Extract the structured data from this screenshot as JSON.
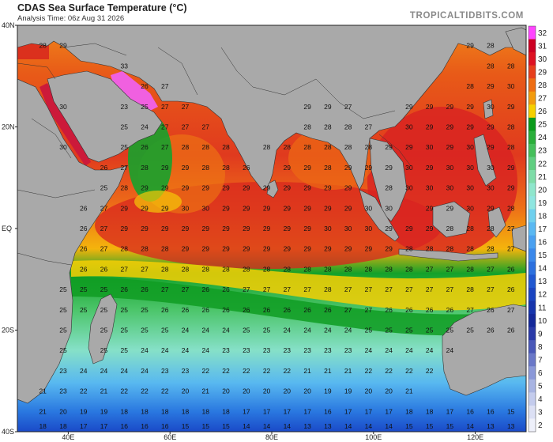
{
  "header": {
    "title": "CDAS Sea Surface Temperature (°C)",
    "subtitle": "Analysis Time: 06z Aug 31 2026",
    "brand": "TROPICALTIDBITS.COM"
  },
  "map": {
    "lon_range": [
      30,
      130
    ],
    "lat_range": [
      -40,
      40
    ],
    "y_ticks": [
      {
        "lat": 40,
        "label": "40N"
      },
      {
        "lat": 20,
        "label": "20N"
      },
      {
        "lat": 0,
        "label": "EQ"
      },
      {
        "lat": -20,
        "label": "20S"
      },
      {
        "lat": -40,
        "label": "40S"
      }
    ],
    "x_ticks": [
      {
        "lon": 40,
        "label": "40E"
      },
      {
        "lon": 60,
        "label": "60E"
      },
      {
        "lon": 80,
        "label": "80E"
      },
      {
        "lon": 100,
        "label": "100E"
      },
      {
        "lon": 120,
        "label": "120E"
      }
    ],
    "land_color": "#a9a9a9",
    "border_color": "#2a2a2a",
    "value_grid": {
      "lons": [
        35,
        39,
        43,
        47,
        51,
        55,
        59,
        63,
        67,
        71,
        75,
        79,
        83,
        87,
        91,
        95,
        99,
        103,
        107,
        111,
        115,
        119,
        123,
        127
      ],
      "rows": [
        {
          "lat": 36,
          "values": [
            28,
            29,
            null,
            null,
            null,
            null,
            null,
            null,
            null,
            null,
            null,
            null,
            null,
            null,
            null,
            null,
            null,
            null,
            null,
            null,
            null,
            29,
            28,
            null
          ]
        },
        {
          "lat": 32,
          "values": [
            null,
            null,
            null,
            null,
            33,
            null,
            null,
            null,
            null,
            null,
            null,
            null,
            null,
            null,
            null,
            null,
            null,
            null,
            null,
            null,
            null,
            null,
            28,
            28
          ]
        },
        {
          "lat": 28,
          "values": [
            null,
            null,
            null,
            null,
            null,
            26,
            27,
            null,
            null,
            null,
            null,
            null,
            null,
            null,
            null,
            null,
            null,
            null,
            null,
            null,
            null,
            28,
            29,
            30
          ]
        },
        {
          "lat": 24,
          "values": [
            null,
            30,
            null,
            null,
            23,
            25,
            27,
            27,
            null,
            null,
            null,
            null,
            null,
            29,
            29,
            27,
            null,
            null,
            29,
            29,
            29,
            29,
            30,
            29
          ]
        },
        {
          "lat": 20,
          "values": [
            null,
            null,
            null,
            null,
            25,
            24,
            27,
            27,
            27,
            null,
            null,
            null,
            null,
            28,
            28,
            28,
            27,
            null,
            30,
            29,
            29,
            29,
            29,
            28
          ]
        },
        {
          "lat": 16,
          "values": [
            null,
            30,
            null,
            null,
            25,
            26,
            27,
            28,
            28,
            28,
            null,
            28,
            28,
            28,
            28,
            28,
            28,
            29,
            29,
            30,
            29,
            30,
            29,
            28
          ]
        },
        {
          "lat": 12,
          "values": [
            null,
            null,
            null,
            26,
            27,
            28,
            29,
            29,
            28,
            28,
            26,
            null,
            29,
            29,
            28,
            29,
            29,
            29,
            30,
            29,
            30,
            30,
            30,
            29
          ]
        },
        {
          "lat": 8,
          "values": [
            null,
            null,
            null,
            25,
            28,
            29,
            29,
            29,
            29,
            29,
            29,
            29,
            29,
            29,
            29,
            29,
            null,
            28,
            30,
            30,
            30,
            30,
            30,
            29
          ]
        },
        {
          "lat": 4,
          "values": [
            null,
            null,
            26,
            27,
            29,
            29,
            29,
            30,
            30,
            29,
            29,
            29,
            29,
            29,
            29,
            29,
            30,
            30,
            null,
            29,
            29,
            30,
            29,
            28
          ]
        },
        {
          "lat": 0,
          "values": [
            null,
            null,
            26,
            27,
            29,
            29,
            29,
            29,
            29,
            29,
            29,
            29,
            29,
            29,
            30,
            30,
            30,
            29,
            29,
            29,
            28,
            28,
            28,
            27
          ]
        },
        {
          "lat": -4,
          "values": [
            null,
            null,
            26,
            27,
            28,
            28,
            28,
            29,
            29,
            29,
            29,
            29,
            29,
            29,
            29,
            29,
            29,
            29,
            28,
            28,
            28,
            28,
            28,
            27
          ]
        },
        {
          "lat": -8,
          "values": [
            null,
            null,
            26,
            26,
            27,
            27,
            28,
            28,
            28,
            28,
            28,
            28,
            28,
            28,
            28,
            28,
            28,
            28,
            28,
            27,
            27,
            28,
            27,
            26
          ]
        },
        {
          "lat": -12,
          "values": [
            null,
            25,
            25,
            25,
            26,
            26,
            27,
            27,
            26,
            26,
            27,
            27,
            27,
            27,
            28,
            27,
            27,
            27,
            27,
            27,
            27,
            28,
            27,
            26
          ]
        },
        {
          "lat": -16,
          "values": [
            null,
            25,
            25,
            25,
            25,
            25,
            26,
            26,
            26,
            26,
            26,
            26,
            26,
            26,
            26,
            27,
            27,
            26,
            26,
            26,
            26,
            27,
            26,
            27
          ]
        },
        {
          "lat": -20,
          "values": [
            null,
            25,
            null,
            25,
            25,
            25,
            25,
            24,
            24,
            24,
            25,
            25,
            24,
            24,
            24,
            24,
            25,
            25,
            25,
            25,
            25,
            25,
            26,
            26
          ]
        },
        {
          "lat": -24,
          "values": [
            null,
            25,
            null,
            25,
            25,
            24,
            24,
            24,
            24,
            23,
            23,
            23,
            23,
            23,
            23,
            23,
            24,
            24,
            24,
            24,
            24,
            null,
            null,
            null
          ]
        },
        {
          "lat": -28,
          "values": [
            null,
            23,
            24,
            24,
            24,
            24,
            23,
            23,
            22,
            22,
            22,
            22,
            22,
            21,
            21,
            21,
            22,
            22,
            22,
            22,
            null,
            null,
            null,
            null
          ]
        },
        {
          "lat": -32,
          "values": [
            21,
            23,
            22,
            21,
            22,
            22,
            22,
            20,
            21,
            20,
            20,
            20,
            20,
            20,
            19,
            19,
            20,
            20,
            21,
            null,
            null,
            null,
            null,
            null
          ]
        },
        {
          "lat": -36,
          "values": [
            21,
            20,
            19,
            19,
            18,
            18,
            18,
            18,
            18,
            18,
            17,
            17,
            17,
            17,
            16,
            17,
            17,
            17,
            18,
            18,
            17,
            16,
            16,
            15
          ]
        },
        {
          "lat": -40,
          "values": [
            18,
            18,
            17,
            17,
            16,
            16,
            16,
            15,
            15,
            15,
            14,
            14,
            14,
            13,
            13,
            14,
            14,
            14,
            15,
            15,
            15,
            14,
            13,
            13
          ]
        }
      ]
    }
  },
  "colorbar": {
    "labels": [
      32,
      31,
      30,
      29,
      28,
      27,
      26,
      25,
      24,
      23,
      22,
      21,
      20,
      19,
      18,
      17,
      16,
      15,
      14,
      13,
      12,
      11,
      10,
      9,
      8,
      7,
      6,
      5,
      4,
      3,
      2
    ],
    "colors": [
      "#ff44ff",
      "#cc0022",
      "#dd1122",
      "#e63e1c",
      "#ee6d14",
      "#f29b0e",
      "#f6d000",
      "#0a9a1a",
      "#2aae3a",
      "#45bf5a",
      "#60ce80",
      "#7fdca8",
      "#8fe6cc",
      "#8fe6e0",
      "#6fd0ee",
      "#5ab8f2",
      "#4aa0f0",
      "#3a88ea",
      "#2c70de",
      "#2058d0",
      "#1a44c0",
      "#1634ac",
      "#14289a",
      "#2a3aa8",
      "#4a58b8",
      "#6a78c8",
      "#8a98d8",
      "#a8b4e2",
      "#c4cced",
      "#dce0f4",
      "#eef0fa"
    ]
  }
}
